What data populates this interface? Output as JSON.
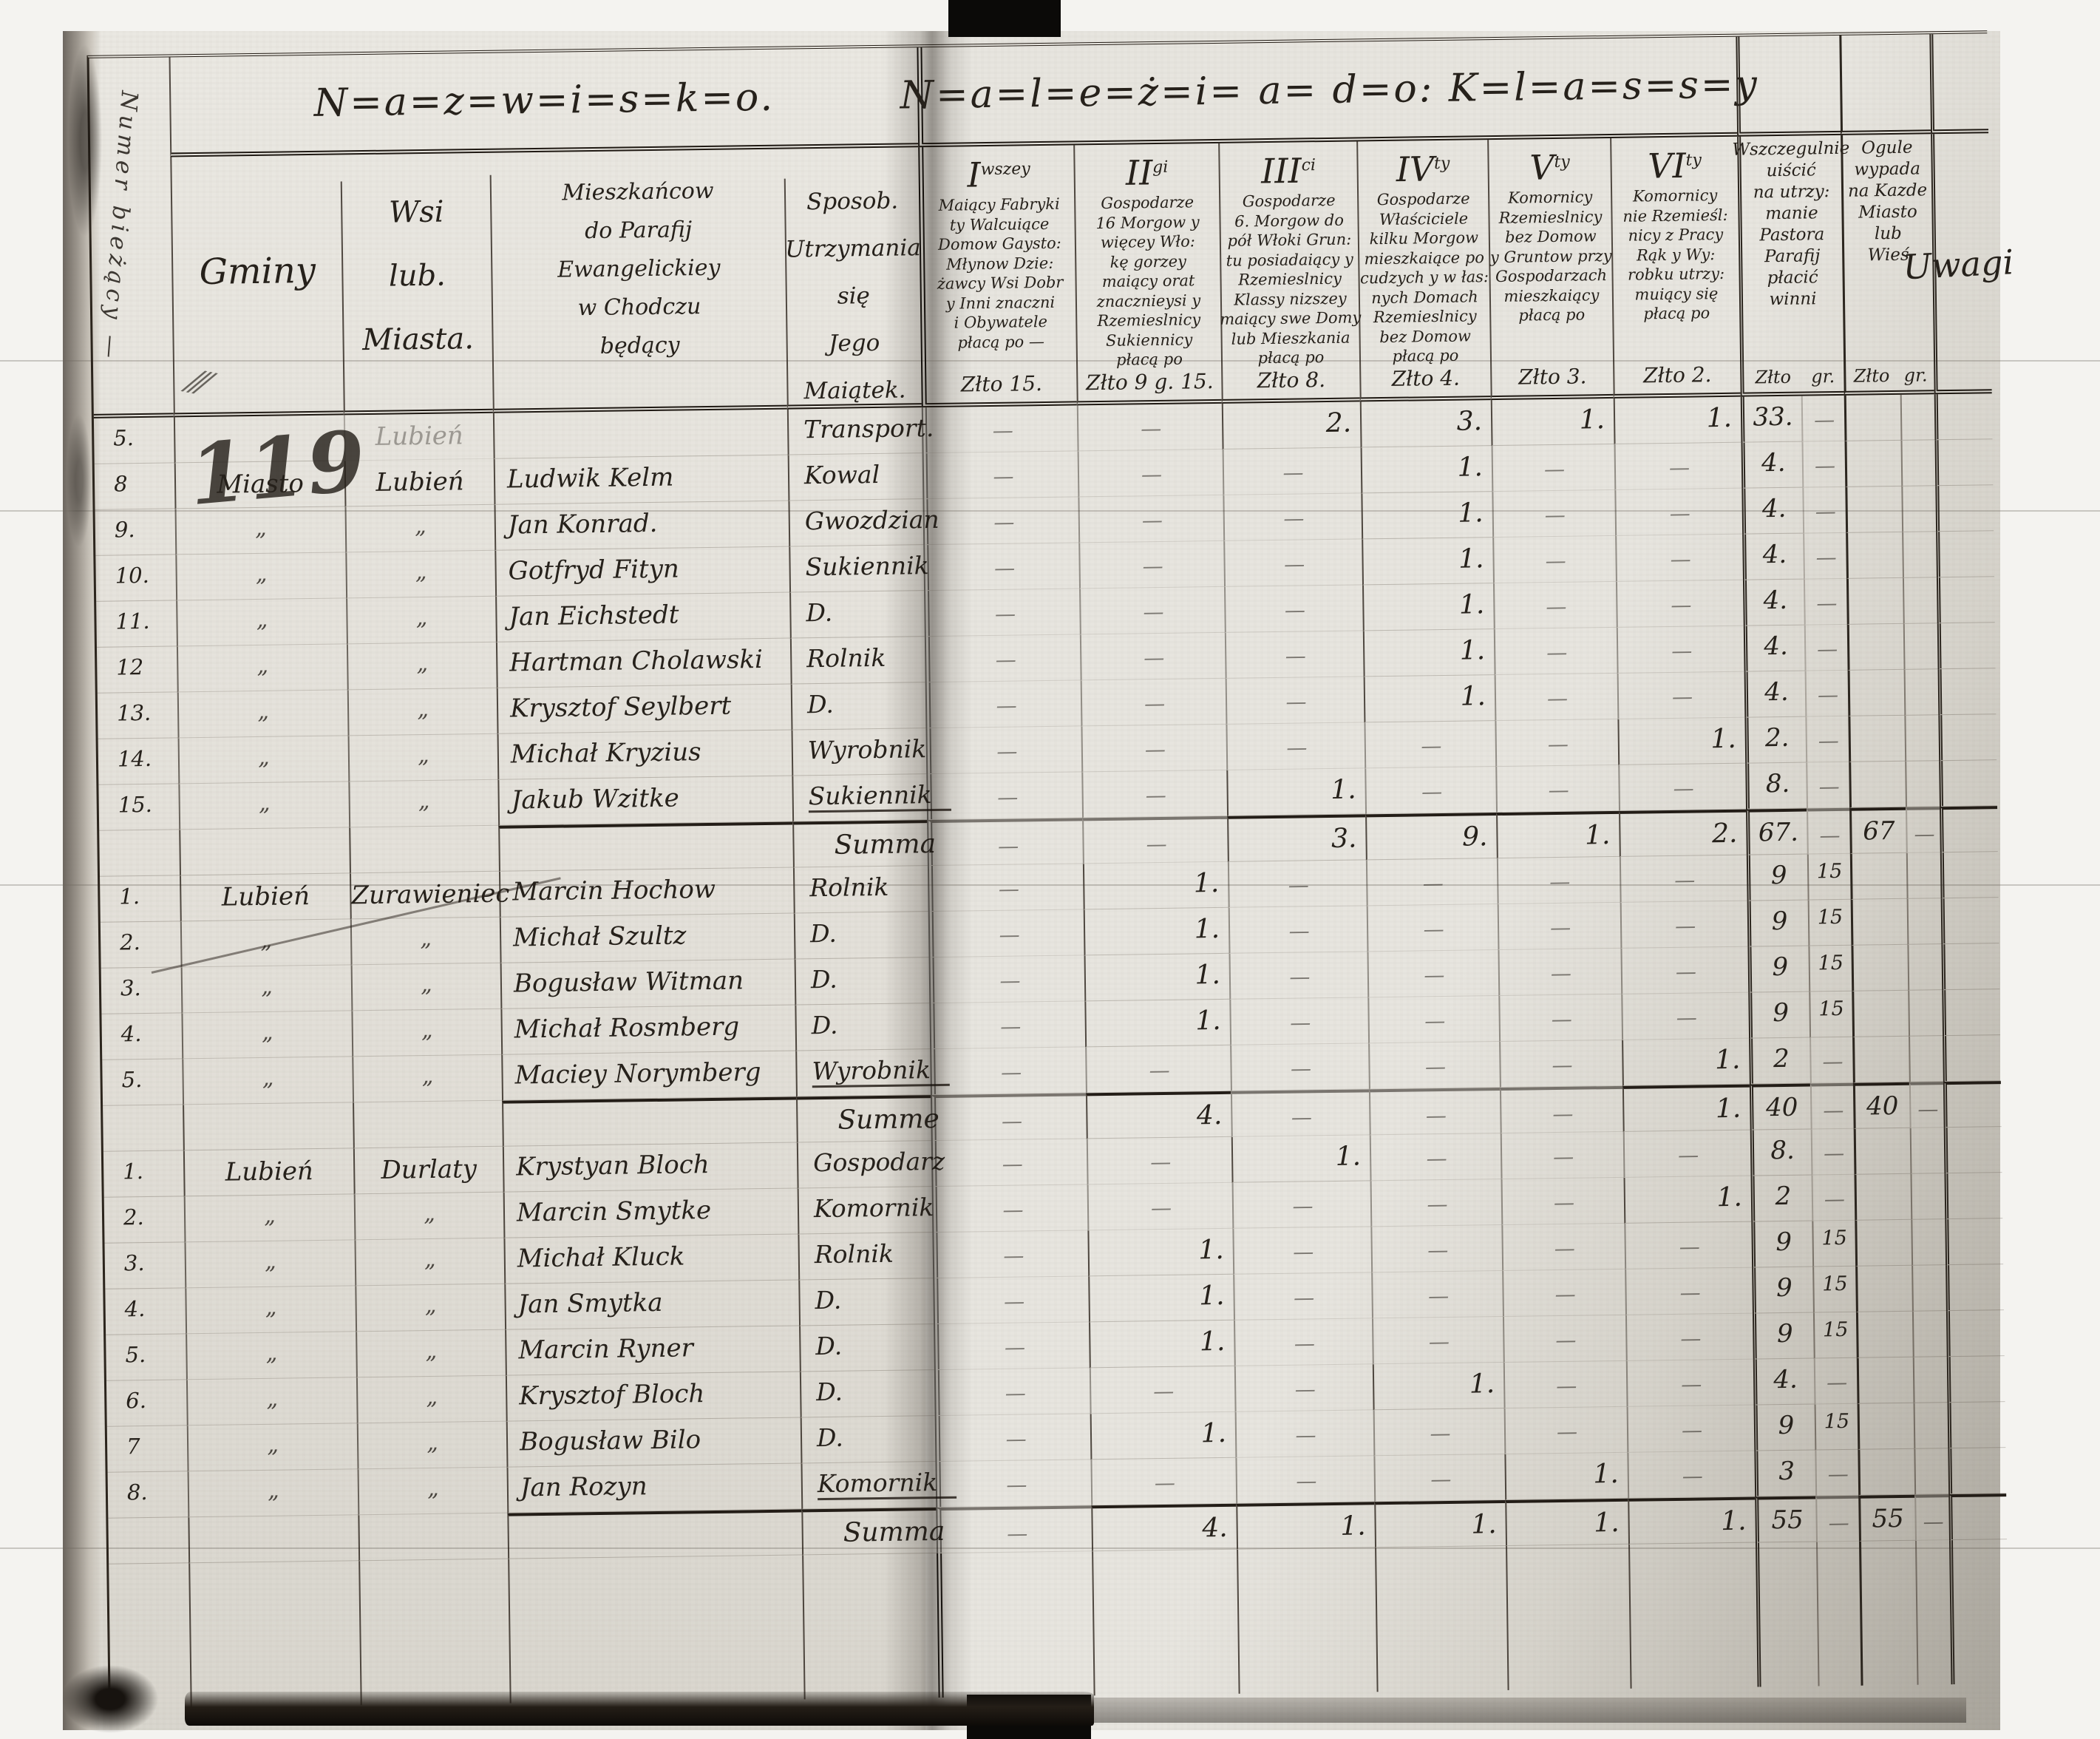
{
  "document": {
    "left_page_title": "N=a=z=w=i=s=k=o.",
    "right_page_title": "N=a=l=e=ż=i= a= d=o: K=l=a=s=s=y",
    "folio_graffiti": "119"
  },
  "header": {
    "numer_col": "Numer bieżący —",
    "gminy": "Gminy",
    "gminy_mark": "⁄⁄⁄",
    "wsi": [
      "Wsi",
      "lub.",
      "Miasta."
    ],
    "parafia": [
      "Mieszkańcow",
      "do Parafij",
      "Ewangelickiey",
      "w Chodczu",
      "będący"
    ],
    "sposob": [
      "Sposob.",
      "Utrzymania się",
      "Jego",
      "Maiątek."
    ],
    "classes": [
      {
        "numeral": "I",
        "suffix": "wszey",
        "rate": "Złto 15.",
        "lines": [
          "Maiący Fabryki",
          "ty Walcuiące",
          "Domow Gaysto:",
          "Młynow Dzie:",
          "żawcy Wsi Dobr",
          "y Inni znaczni",
          "i Obywatele",
          "płacą po —"
        ]
      },
      {
        "numeral": "II",
        "suffix": "gi",
        "rate": "Złto 9 g. 15.",
        "lines": [
          "Gospodarze",
          "16 Morgow y",
          "więcey Wło:",
          "kę gorzey",
          "maiący orat",
          "znacznieysi y",
          "Rzemieslnicy",
          "Sukiennicy",
          "płacą po"
        ]
      },
      {
        "numeral": "III",
        "suffix": "ci",
        "rate": "Złto 8.",
        "lines": [
          "Gospodarze",
          "6. Morgow do",
          "pół Włoki Grun:",
          "tu posiadaiący y",
          "Rzemieslnicy",
          "Klassy nizszey",
          "maiący swe Domy",
          "lub Mieszkania",
          "płacą po"
        ]
      },
      {
        "numeral": "IV",
        "suffix": "ty",
        "rate": "Złto 4.",
        "lines": [
          "Gospodarze",
          "Właściciele",
          "kilku Morgow",
          "mieszkaiące po",
          "cudzych y w łas:",
          "nych Domach",
          "Rzemieslnicy",
          "bez Domow",
          "płacą po"
        ]
      },
      {
        "numeral": "V",
        "suffix": "ty",
        "rate": "Złto 3.",
        "lines": [
          "Komornicy",
          "Rzemieslnicy",
          "bez Domow",
          "y Gruntow przy",
          "Gospodarzach",
          "mieszkaiący",
          "płacą po"
        ]
      },
      {
        "numeral": "VI",
        "suffix": "ty",
        "rate": "Złto 2.",
        "lines": [
          "Komornicy",
          "nie Rzemieśl:",
          "nicy z Pracy",
          "Rąk y Wy:",
          "robku utrzy:",
          "muiący się",
          "płacą po"
        ]
      }
    ],
    "pastor": {
      "zl": "Złto",
      "gr": "gr.",
      "lines": [
        "Wszczegulnie",
        "uiścić",
        "na utrzy:",
        "manie",
        "Pastora",
        "Parafij",
        "płacić",
        "winni"
      ]
    },
    "ogol": {
      "zl": "Złto",
      "gr": "gr.",
      "lines": [
        "Ogule",
        "wypada",
        "na Kazde",
        "Miasto",
        "lub",
        "Wieś"
      ]
    },
    "uwagi": "Uwagi"
  },
  "rows": [
    {
      "num": "5.",
      "gmina": "",
      "wies": "Lubień",
      "wfaint": true,
      "name": "",
      "occ": "Transport.",
      "c3": "2.",
      "c4": "3.",
      "c5": "1.",
      "c6": "1.",
      "z1": "33.",
      "g1": "—"
    },
    {
      "num": "8",
      "gmina": "Miasto",
      "wies": "Lubień",
      "name": "Ludwik Kelm",
      "occ": "Kowal",
      "c4": "1.",
      "z1": "4.",
      "g1": "—"
    },
    {
      "num": "9.",
      "gmina": "„",
      "wies": "„",
      "name": "Jan Konrad.",
      "occ": "Gwozdzian",
      "c4": "1.",
      "z1": "4.",
      "g1": "—"
    },
    {
      "num": "10.",
      "gmina": "„",
      "wies": "„",
      "name": "Gotfryd Fityn",
      "occ": "Sukiennik",
      "c4": "1.",
      "z1": "4.",
      "g1": "—"
    },
    {
      "num": "11.",
      "gmina": "„",
      "wies": "„",
      "name": "Jan Eichstedt",
      "occ": "D.",
      "c4": "1.",
      "z1": "4.",
      "g1": "—"
    },
    {
      "num": "12",
      "gmina": "„",
      "wies": "„",
      "name": "Hartman Cholawski",
      "occ": "Rolnik",
      "c4": "1.",
      "z1": "4.",
      "g1": "—"
    },
    {
      "num": "13.",
      "gmina": "„",
      "wies": "„",
      "name": "Krysztof Seylbert",
      "occ": "D.",
      "c4": "1.",
      "z1": "4.",
      "g1": "—"
    },
    {
      "num": "14.",
      "gmina": "„",
      "wies": "„",
      "name": "Michał Kryzius",
      "occ": "Wyrobnik",
      "c6": "1.",
      "z1": "2.",
      "g1": "—"
    },
    {
      "num": "15.",
      "gmina": "„",
      "wies": "„",
      "name": "Jakub Wzitke",
      "occ": "Sukiennik",
      "ul": true,
      "c3": "1.",
      "z1": "8.",
      "g1": "—"
    },
    {
      "summa": true,
      "occ": "Summa",
      "c3": "3.",
      "c4": "9.",
      "c5": "1.",
      "c6": "2.",
      "z1": "67.",
      "g1": "—",
      "z2": "67",
      "g2": "—"
    },
    {
      "num": "1.",
      "gmina": "Lubień",
      "wies": "Zurawieniec",
      "name": "Marcin Hochow",
      "occ": "Rolnik",
      "c2": "1.",
      "z1": "9",
      "g1": "15"
    },
    {
      "num": "2.",
      "gmina": "„",
      "wies": "„",
      "name": "Michał Szultz",
      "occ": "D.",
      "c2": "1.",
      "z1": "9",
      "g1": "15"
    },
    {
      "num": "3.",
      "gmina": "„",
      "wies": "„",
      "name": "Bogusław Witman",
      "occ": "D.",
      "c2": "1.",
      "z1": "9",
      "g1": "15"
    },
    {
      "num": "4.",
      "gmina": "„",
      "wies": "„",
      "name": "Michał Rosmberg",
      "occ": "D.",
      "c2": "1.",
      "z1": "9",
      "g1": "15"
    },
    {
      "num": "5.",
      "gmina": "„",
      "wies": "„",
      "name": "Maciey Norymberg",
      "occ": "Wyrobnik",
      "ul": true,
      "c6": "1.",
      "z1": "2",
      "g1": "—"
    },
    {
      "summa": true,
      "occ": "Summe",
      "c2": "4.",
      "c6": "1.",
      "z1": "40",
      "g1": "—",
      "z2": "40",
      "g2": "—"
    },
    {
      "num": "1.",
      "gmina": "Lubień",
      "wies": "Durlaty",
      "name": "Krystyan Bloch",
      "occ": "Gospodarz",
      "c3": "1.",
      "z1": "8.",
      "g1": "—"
    },
    {
      "num": "2.",
      "gmina": "„",
      "wies": "„",
      "name": "Marcin Smytke",
      "occ": "Komornik",
      "c6": "1.",
      "z1": "2",
      "g1": "—"
    },
    {
      "num": "3.",
      "gmina": "„",
      "wies": "„",
      "name": "Michał Kluck",
      "occ": "Rolnik",
      "c2": "1.",
      "z1": "9",
      "g1": "15"
    },
    {
      "num": "4.",
      "gmina": "„",
      "wies": "„",
      "name": "Jan Smytka",
      "occ": "D.",
      "c2": "1.",
      "z1": "9",
      "g1": "15"
    },
    {
      "num": "5.",
      "gmina": "„",
      "wies": "„",
      "name": "Marcin Ryner",
      "occ": "D.",
      "c2": "1.",
      "z1": "9",
      "g1": "15"
    },
    {
      "num": "6.",
      "gmina": "„",
      "wies": "„",
      "name": "Krysztof Bloch",
      "occ": "D.",
      "c4": "1.",
      "z1": "4.",
      "g1": "—"
    },
    {
      "num": "7",
      "gmina": "„",
      "wies": "„",
      "name": "Bogusław Bilo",
      "occ": "D.",
      "c2": "1.",
      "z1": "9",
      "g1": "15"
    },
    {
      "num": "8.",
      "gmina": "„",
      "wies": "„",
      "name": "Jan Rozyn",
      "occ": "Komornik",
      "ul": true,
      "c5": "1.",
      "z1": "3",
      "g1": "—"
    },
    {
      "summa": true,
      "occ": "Summa",
      "c2": "4.",
      "c3": "1.",
      "c4": "1.",
      "c5": "1.",
      "c6": "1.",
      "z1": "55",
      "g1": "—",
      "z2": "55",
      "g2": "—"
    }
  ]
}
